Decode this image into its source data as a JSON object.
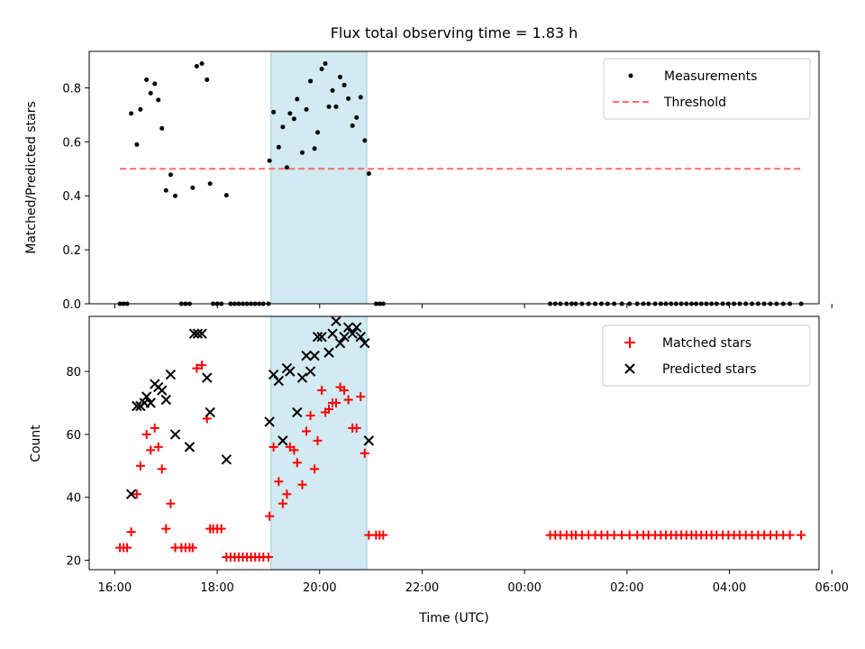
{
  "chart_data": [
    {
      "type": "scatter",
      "title": "Flux total observing time = 1.83 h",
      "xlabel": "",
      "ylabel": "Matched/Predicted stars",
      "xlim_hours": [
        15.5,
        29.75
      ],
      "ylim": [
        0,
        0.935
      ],
      "yticks": [
        0.0,
        0.2,
        0.4,
        0.6,
        0.8
      ],
      "ytick_labels": [
        "0.0",
        "0.2",
        "0.4",
        "0.6",
        "0.8"
      ],
      "highlight_span_hours": [
        19.05,
        20.92
      ],
      "highlight_color": "#add8e6",
      "threshold": {
        "name": "Threshold",
        "value": 0.5,
        "x_hours": [
          16.1,
          29.4
        ],
        "color": "#ff6b6b",
        "style": "dashed"
      },
      "legend": {
        "position": "top-right",
        "entries": [
          "Measurements",
          "Threshold"
        ]
      },
      "series": [
        {
          "name": "Measurements",
          "marker": "dot",
          "color": "#000000",
          "points": [
            [
              16.1,
              0
            ],
            [
              16.17,
              0
            ],
            [
              16.24,
              0
            ],
            [
              16.32,
              0.705
            ],
            [
              16.43,
              0.59
            ],
            [
              16.5,
              0.72
            ],
            [
              16.62,
              0.83
            ],
            [
              16.7,
              0.78
            ],
            [
              16.78,
              0.815
            ],
            [
              16.85,
              0.755
            ],
            [
              16.92,
              0.65
            ],
            [
              17.0,
              0.42
            ],
            [
              17.09,
              0.478
            ],
            [
              17.18,
              0.4
            ],
            [
              17.3,
              0
            ],
            [
              17.38,
              0
            ],
            [
              17.46,
              0
            ],
            [
              17.52,
              0.43
            ],
            [
              17.6,
              0.88
            ],
            [
              17.7,
              0.89
            ],
            [
              17.8,
              0.83
            ],
            [
              17.86,
              0.445
            ],
            [
              17.92,
              0
            ],
            [
              18.0,
              0
            ],
            [
              18.08,
              0
            ],
            [
              18.18,
              0.402
            ],
            [
              18.26,
              0
            ],
            [
              18.34,
              0
            ],
            [
              18.42,
              0
            ],
            [
              18.5,
              0
            ],
            [
              18.58,
              0
            ],
            [
              18.66,
              0
            ],
            [
              18.74,
              0
            ],
            [
              18.82,
              0
            ],
            [
              18.9,
              0
            ],
            [
              19.0,
              0
            ],
            [
              19.02,
              0.53
            ],
            [
              19.1,
              0.71
            ],
            [
              19.2,
              0.58
            ],
            [
              19.28,
              0.655
            ],
            [
              19.36,
              0.505
            ],
            [
              19.42,
              0.705
            ],
            [
              19.5,
              0.685
            ],
            [
              19.56,
              0.758
            ],
            [
              19.66,
              0.56
            ],
            [
              19.74,
              0.72
            ],
            [
              19.82,
              0.825
            ],
            [
              19.9,
              0.575
            ],
            [
              19.96,
              0.635
            ],
            [
              20.04,
              0.87
            ],
            [
              20.11,
              0.89
            ],
            [
              20.18,
              0.73
            ],
            [
              20.25,
              0.79
            ],
            [
              20.32,
              0.73
            ],
            [
              20.4,
              0.84
            ],
            [
              20.48,
              0.81
            ],
            [
              20.56,
              0.76
            ],
            [
              20.64,
              0.66
            ],
            [
              20.72,
              0.69
            ],
            [
              20.8,
              0.765
            ],
            [
              20.88,
              0.605
            ],
            [
              20.96,
              0.482
            ],
            [
              21.1,
              0
            ],
            [
              21.17,
              0
            ],
            [
              21.24,
              0
            ],
            [
              24.5,
              0
            ],
            [
              24.6,
              0
            ],
            [
              24.7,
              0
            ],
            [
              24.82,
              0
            ],
            [
              24.92,
              0
            ],
            [
              25.0,
              0
            ],
            [
              25.12,
              0
            ],
            [
              25.25,
              0
            ],
            [
              25.38,
              0
            ],
            [
              25.5,
              0
            ],
            [
              25.62,
              0
            ],
            [
              25.75,
              0
            ],
            [
              25.9,
              0
            ],
            [
              26.05,
              0
            ],
            [
              26.2,
              0
            ],
            [
              26.32,
              0
            ],
            [
              26.42,
              0
            ],
            [
              26.55,
              0
            ],
            [
              26.66,
              0
            ],
            [
              26.76,
              0
            ],
            [
              26.86,
              0
            ],
            [
              26.96,
              0
            ],
            [
              27.06,
              0
            ],
            [
              27.16,
              0
            ],
            [
              27.26,
              0
            ],
            [
              27.35,
              0
            ],
            [
              27.45,
              0
            ],
            [
              27.55,
              0
            ],
            [
              27.65,
              0
            ],
            [
              27.75,
              0
            ],
            [
              27.87,
              0
            ],
            [
              27.98,
              0
            ],
            [
              28.09,
              0
            ],
            [
              28.2,
              0
            ],
            [
              28.32,
              0
            ],
            [
              28.44,
              0
            ],
            [
              28.56,
              0
            ],
            [
              28.68,
              0
            ],
            [
              28.8,
              0
            ],
            [
              28.92,
              0
            ],
            [
              29.05,
              0
            ],
            [
              29.18,
              0
            ],
            [
              29.4,
              0
            ]
          ]
        }
      ]
    },
    {
      "type": "scatter",
      "title": "",
      "xlabel": "Time (UTC)",
      "ylabel": "Count",
      "xlim_hours": [
        15.5,
        29.75
      ],
      "ylim": [
        17,
        97.5
      ],
      "yticks": [
        20,
        40,
        60,
        80
      ],
      "ytick_labels": [
        "20",
        "40",
        "60",
        "80"
      ],
      "xticks_hours": [
        16,
        18,
        20,
        22,
        24,
        26,
        28,
        30
      ],
      "xtick_labels": [
        "16:00",
        "18:00",
        "20:00",
        "22:00",
        "00:00",
        "02:00",
        "04:00",
        "06:00"
      ],
      "highlight_span_hours": [
        19.05,
        20.92
      ],
      "highlight_color": "#add8e6",
      "legend": {
        "position": "top-right",
        "entries": [
          "Matched stars",
          "Predicted stars"
        ]
      },
      "series": [
        {
          "name": "Matched stars",
          "marker": "plus",
          "color": "#ff0000",
          "points": [
            [
              16.1,
              24
            ],
            [
              16.17,
              24
            ],
            [
              16.24,
              24
            ],
            [
              16.32,
              29
            ],
            [
              16.43,
              41
            ],
            [
              16.5,
              50
            ],
            [
              16.62,
              60
            ],
            [
              16.7,
              55
            ],
            [
              16.78,
              62
            ],
            [
              16.85,
              56
            ],
            [
              16.92,
              49
            ],
            [
              17.0,
              30
            ],
            [
              17.09,
              38
            ],
            [
              17.18,
              24
            ],
            [
              17.3,
              24
            ],
            [
              17.38,
              24
            ],
            [
              17.46,
              24
            ],
            [
              17.52,
              24
            ],
            [
              17.6,
              81
            ],
            [
              17.7,
              82
            ],
            [
              17.8,
              65
            ],
            [
              17.86,
              30
            ],
            [
              17.92,
              30
            ],
            [
              18.0,
              30
            ],
            [
              18.08,
              30
            ],
            [
              18.18,
              21
            ],
            [
              18.26,
              21
            ],
            [
              18.34,
              21
            ],
            [
              18.42,
              21
            ],
            [
              18.5,
              21
            ],
            [
              18.58,
              21
            ],
            [
              18.66,
              21
            ],
            [
              18.74,
              21
            ],
            [
              18.82,
              21
            ],
            [
              18.9,
              21
            ],
            [
              19.0,
              21
            ],
            [
              19.02,
              34
            ],
            [
              19.1,
              56
            ],
            [
              19.2,
              45
            ],
            [
              19.28,
              38
            ],
            [
              19.36,
              41
            ],
            [
              19.42,
              56
            ],
            [
              19.5,
              55
            ],
            [
              19.56,
              51
            ],
            [
              19.66,
              44
            ],
            [
              19.74,
              61
            ],
            [
              19.82,
              66
            ],
            [
              19.9,
              49
            ],
            [
              19.96,
              58
            ],
            [
              20.04,
              74
            ],
            [
              20.11,
              67
            ],
            [
              20.18,
              68
            ],
            [
              20.25,
              70
            ],
            [
              20.32,
              70
            ],
            [
              20.4,
              75
            ],
            [
              20.48,
              74
            ],
            [
              20.56,
              71
            ],
            [
              20.64,
              62
            ],
            [
              20.72,
              62
            ],
            [
              20.8,
              72
            ],
            [
              20.88,
              54
            ],
            [
              20.96,
              28
            ],
            [
              21.1,
              28
            ],
            [
              21.17,
              28
            ],
            [
              21.24,
              28
            ],
            [
              24.5,
              28
            ],
            [
              24.6,
              28
            ],
            [
              24.7,
              28
            ],
            [
              24.82,
              28
            ],
            [
              24.92,
              28
            ],
            [
              25.0,
              28
            ],
            [
              25.12,
              28
            ],
            [
              25.25,
              28
            ],
            [
              25.38,
              28
            ],
            [
              25.5,
              28
            ],
            [
              25.62,
              28
            ],
            [
              25.75,
              28
            ],
            [
              25.9,
              28
            ],
            [
              26.05,
              28
            ],
            [
              26.2,
              28
            ],
            [
              26.32,
              28
            ],
            [
              26.42,
              28
            ],
            [
              26.55,
              28
            ],
            [
              26.66,
              28
            ],
            [
              26.76,
              28
            ],
            [
              26.86,
              28
            ],
            [
              26.96,
              28
            ],
            [
              27.06,
              28
            ],
            [
              27.16,
              28
            ],
            [
              27.26,
              28
            ],
            [
              27.35,
              28
            ],
            [
              27.45,
              28
            ],
            [
              27.55,
              28
            ],
            [
              27.65,
              28
            ],
            [
              27.75,
              28
            ],
            [
              27.87,
              28
            ],
            [
              27.98,
              28
            ],
            [
              28.09,
              28
            ],
            [
              28.2,
              28
            ],
            [
              28.32,
              28
            ],
            [
              28.44,
              28
            ],
            [
              28.56,
              28
            ],
            [
              28.68,
              28
            ],
            [
              28.8,
              28
            ],
            [
              28.92,
              28
            ],
            [
              29.05,
              28
            ],
            [
              29.18,
              28
            ],
            [
              29.4,
              28
            ]
          ]
        },
        {
          "name": "Predicted stars",
          "marker": "x",
          "color": "#000000",
          "points": [
            [
              16.32,
              41
            ],
            [
              16.43,
              69
            ],
            [
              16.5,
              69
            ],
            [
              16.58,
              70
            ],
            [
              16.62,
              72
            ],
            [
              16.7,
              70
            ],
            [
              16.78,
              76
            ],
            [
              16.85,
              75
            ],
            [
              16.92,
              74
            ],
            [
              17.0,
              71
            ],
            [
              17.09,
              79
            ],
            [
              17.18,
              60
            ],
            [
              17.46,
              56
            ],
            [
              17.55,
              92
            ],
            [
              17.62,
              92
            ],
            [
              17.7,
              92
            ],
            [
              17.8,
              78
            ],
            [
              17.86,
              67
            ],
            [
              18.18,
              52
            ],
            [
              19.02,
              64
            ],
            [
              19.1,
              79
            ],
            [
              19.2,
              77
            ],
            [
              19.28,
              58
            ],
            [
              19.36,
              81
            ],
            [
              19.42,
              80
            ],
            [
              19.56,
              67
            ],
            [
              19.66,
              78
            ],
            [
              19.74,
              85
            ],
            [
              19.82,
              80
            ],
            [
              19.9,
              85
            ],
            [
              19.96,
              91
            ],
            [
              20.04,
              91
            ],
            [
              20.18,
              86
            ],
            [
              20.25,
              92
            ],
            [
              20.32,
              96
            ],
            [
              20.4,
              89
            ],
            [
              20.48,
              91
            ],
            [
              20.56,
              94
            ],
            [
              20.64,
              92
            ],
            [
              20.72,
              94
            ],
            [
              20.8,
              91
            ],
            [
              20.88,
              89
            ],
            [
              20.96,
              58
            ]
          ]
        }
      ]
    }
  ]
}
